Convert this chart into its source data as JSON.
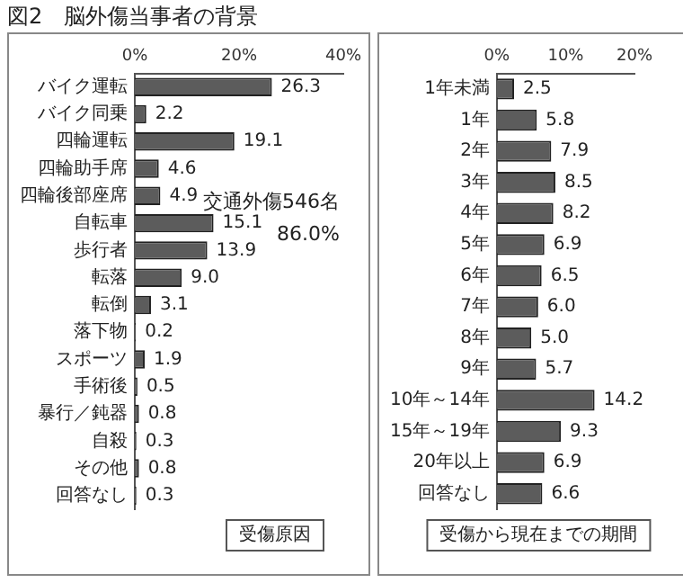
{
  "chart_data": [
    {
      "type": "bar",
      "orientation": "horizontal",
      "title": "図2　脳外傷当事者の背景",
      "categories": [
        "バイク運転",
        "バイク同乗",
        "四輪運転",
        "四輪助手席",
        "四輪後部座席",
        "自転車",
        "歩行者",
        "転落",
        "転倒",
        "落下物",
        "スポーツ",
        "手術後",
        "暴行／鈍器",
        "自殺",
        "その他",
        "回答なし"
      ],
      "values": [
        26.3,
        2.2,
        19.1,
        4.6,
        4.9,
        15.1,
        13.9,
        9.0,
        3.1,
        0.2,
        1.9,
        0.5,
        0.8,
        0.3,
        0.8,
        0.3
      ],
      "value_labels": [
        "26.3",
        "2.2",
        "19.1",
        "4.6",
        "4.9",
        "15.1",
        "13.9",
        "9.0",
        "3.1",
        "0.2",
        "1.9",
        "0.5",
        "0.8",
        "0.3",
        "0.8",
        "0.3"
      ],
      "color": "#5c5c5c",
      "xlim": [
        0,
        40
      ],
      "xticks": [
        {
          "value": 0,
          "label": "0%"
        },
        {
          "value": 20,
          "label": "20%"
        },
        {
          "value": 40,
          "label": "40%"
        }
      ],
      "grid": false,
      "legend": false,
      "annotations": [
        "交通外傷546名",
        "86.0%",
        "受傷原因"
      ]
    },
    {
      "type": "bar",
      "orientation": "horizontal",
      "categories": [
        "1年未満",
        "1年",
        "2年",
        "3年",
        "4年",
        "5年",
        "6年",
        "7年",
        "8年",
        "9年",
        "10年～14年",
        "15年～19年",
        "20年以上",
        "回答なし"
      ],
      "values": [
        2.5,
        5.8,
        7.9,
        8.5,
        8.2,
        6.9,
        6.5,
        6.0,
        5.0,
        5.7,
        14.2,
        9.3,
        6.9,
        6.6
      ],
      "value_labels": [
        "2.5",
        "5.8",
        "7.9",
        "8.5",
        "8.2",
        "6.9",
        "6.5",
        "6.0",
        "5.0",
        "5.7",
        "14.2",
        "9.3",
        "6.9",
        "6.6"
      ],
      "color": "#5c5c5c",
      "xlim": [
        0,
        20
      ],
      "xticks": [
        {
          "value": 0,
          "label": "0%"
        },
        {
          "value": 10,
          "label": "10%"
        },
        {
          "value": 20,
          "label": "20%"
        }
      ],
      "grid": false,
      "legend": false,
      "annotations": [
        "受傷から現在までの期間"
      ]
    }
  ]
}
